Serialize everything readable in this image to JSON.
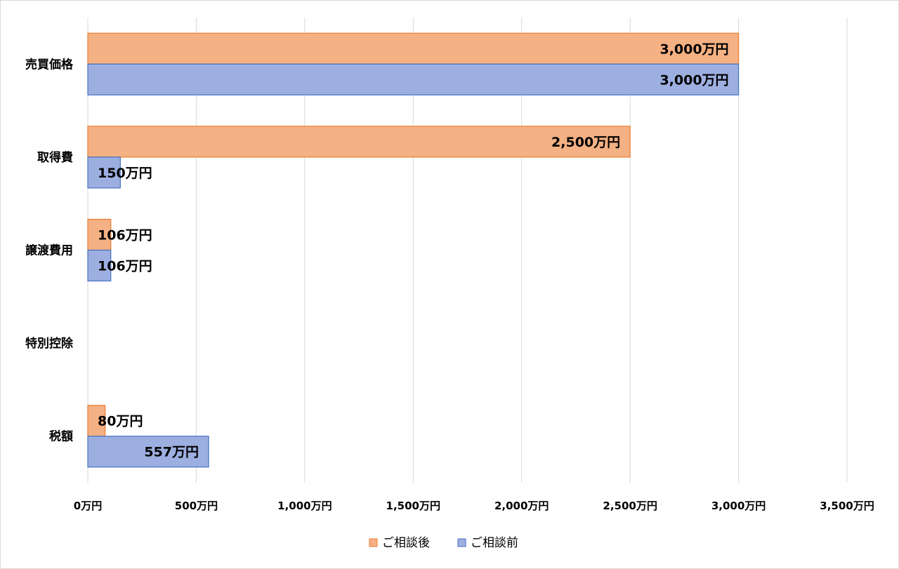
{
  "chart_data": {
    "type": "bar",
    "orientation": "horizontal",
    "categories": [
      "税額",
      "特別控除",
      "譲渡費用",
      "取得費",
      "売買価格"
    ],
    "series": [
      {
        "name": "ご相談後",
        "color": "#f4b183",
        "stroke": "#ed7d31",
        "values": [
          80,
          null,
          106,
          2500,
          3000
        ],
        "labels": [
          "80万円",
          "",
          "106万円",
          "2,500万円",
          "3,000万円"
        ]
      },
      {
        "name": "ご相談前",
        "color": "#9dafe0",
        "stroke": "#4472c4",
        "values": [
          557,
          null,
          106,
          150,
          3000
        ],
        "labels": [
          "557万円",
          "",
          "106万円",
          "150万円",
          "3,000万円"
        ]
      }
    ],
    "x_ticks": [
      0,
      500,
      1000,
      1500,
      2000,
      2500,
      3000,
      3500
    ],
    "x_tick_labels": [
      "0万円",
      "500万円",
      "1,000万円",
      "1,500万円",
      "2,000万円",
      "2,500万円",
      "3,000万円",
      "3,500万円"
    ],
    "xlim": [
      0,
      3500
    ],
    "grid": true,
    "legend_position": "bottom",
    "title": "",
    "xlabel": "",
    "ylabel": ""
  }
}
